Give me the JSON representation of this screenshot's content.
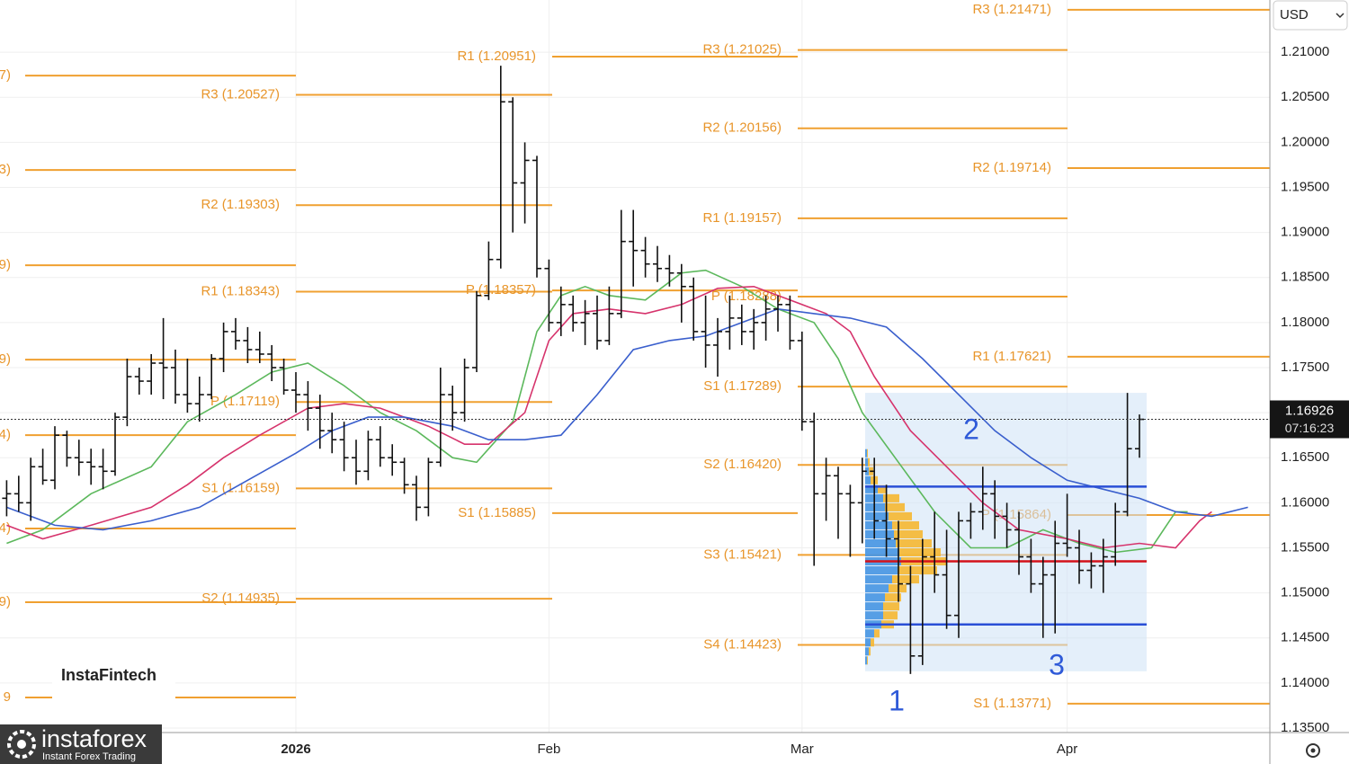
{
  "chart_data": {
    "type": "ohlc",
    "color": "#111111",
    "categories": [
      null,
      null,
      null,
      null,
      null,
      null,
      null,
      null,
      null,
      null,
      null,
      null,
      null,
      null,
      null,
      null,
      null,
      null,
      null,
      null,
      null,
      null,
      null,
      null,
      "2026",
      null,
      null,
      null,
      null,
      null,
      null,
      null,
      null,
      null,
      null,
      null,
      null,
      null,
      null,
      null,
      null,
      null,
      null,
      null,
      null,
      "Feb",
      null,
      null,
      null,
      null,
      null,
      null,
      null,
      null,
      null,
      null,
      null,
      null,
      null,
      null,
      null,
      null,
      null,
      null,
      null,
      null,
      "Mar",
      null,
      null,
      null,
      null,
      null,
      null,
      null,
      null,
      null,
      null,
      null,
      null,
      null,
      null,
      null,
      null,
      null,
      null,
      null,
      null,
      null,
      "Apr",
      null,
      null,
      null,
      null,
      null,
      null
    ],
    "open": [
      1.1605,
      1.161,
      1.16,
      1.164,
      1.1625,
      1.1675,
      1.165,
      1.1645,
      1.164,
      1.1635,
      1.1695,
      1.174,
      1.1735,
      1.1755,
      1.175,
      1.172,
      1.171,
      1.172,
      1.176,
      1.179,
      1.178,
      1.177,
      1.1765,
      1.175,
      1.1725,
      1.172,
      1.1705,
      1.168,
      1.167,
      1.165,
      1.1635,
      1.167,
      1.165,
      1.1645,
      1.162,
      1.1595,
      1.1645,
      1.172,
      1.17,
      1.175,
      1.183,
      1.187,
      1.2045,
      1.1955,
      1.198,
      1.186,
      1.18,
      1.182,
      1.18,
      1.181,
      1.178,
      1.181,
      1.189,
      1.188,
      1.1865,
      1.186,
      1.1855,
      1.184,
      1.179,
      1.1775,
      1.179,
      1.1805,
      1.179,
      1.18,
      1.1815,
      1.182,
      1.178,
      1.169,
      1.161,
      1.163,
      1.161,
      1.16,
      1.1635,
      1.158,
      1.156,
      1.151,
      1.143,
      1.154,
      1.152,
      1.1475,
      1.158,
      1.159,
      1.161,
      1.1585,
      1.157,
      1.154,
      1.151,
      1.152,
      1.1555,
      1.155,
      1.1525,
      1.153,
      1.154,
      1.159,
      1.166
    ],
    "high": [
      1.1625,
      1.163,
      1.165,
      1.166,
      1.1685,
      1.168,
      1.167,
      1.166,
      1.166,
      1.17,
      1.176,
      1.175,
      1.1765,
      1.1805,
      1.177,
      1.176,
      1.174,
      1.1765,
      1.18,
      1.1805,
      1.1795,
      1.179,
      1.1775,
      1.176,
      1.1745,
      1.1735,
      1.172,
      1.17,
      1.169,
      1.167,
      1.168,
      1.1685,
      1.1665,
      1.165,
      1.163,
      1.165,
      1.175,
      1.173,
      1.176,
      1.1835,
      1.189,
      1.2085,
      1.205,
      1.2,
      1.1985,
      1.187,
      1.184,
      1.183,
      1.1825,
      1.183,
      1.184,
      1.1925,
      1.1925,
      1.1895,
      1.1885,
      1.1875,
      1.1865,
      1.185,
      1.183,
      1.1805,
      1.183,
      1.182,
      1.1815,
      1.183,
      1.183,
      1.183,
      1.179,
      1.17,
      1.165,
      1.164,
      1.162,
      1.165,
      1.165,
      1.162,
      1.158,
      1.153,
      1.156,
      1.159,
      1.157,
      1.159,
      1.16,
      1.164,
      1.1625,
      1.16,
      1.159,
      1.156,
      1.154,
      1.158,
      1.161,
      1.157,
      1.1545,
      1.156,
      1.16,
      1.1722,
      1.1698
    ],
    "low": [
      1.1585,
      1.159,
      1.158,
      1.162,
      1.1615,
      1.164,
      1.163,
      1.162,
      1.1615,
      1.163,
      1.1685,
      1.172,
      1.172,
      1.1715,
      1.171,
      1.17,
      1.169,
      1.1715,
      1.1745,
      1.177,
      1.1755,
      1.1755,
      1.1735,
      1.172,
      1.17,
      1.168,
      1.166,
      1.1655,
      1.1635,
      1.162,
      1.1625,
      1.164,
      1.163,
      1.161,
      1.158,
      1.1585,
      1.164,
      1.168,
      1.169,
      1.1745,
      1.1825,
      1.186,
      1.19,
      1.191,
      1.185,
      1.179,
      1.1785,
      1.179,
      1.1775,
      1.177,
      1.1775,
      1.1805,
      1.184,
      1.185,
      1.1845,
      1.184,
      1.18,
      1.178,
      1.175,
      1.174,
      1.177,
      1.1775,
      1.177,
      1.178,
      1.179,
      1.177,
      1.168,
      1.153,
      1.158,
      1.156,
      1.154,
      1.1555,
      1.156,
      1.154,
      1.149,
      1.141,
      1.142,
      1.15,
      1.146,
      1.145,
      1.156,
      1.157,
      1.156,
      1.155,
      1.152,
      1.15,
      1.145,
      1.1455,
      1.154,
      1.151,
      1.1505,
      1.15,
      1.153,
      1.1585,
      1.165
    ],
    "close": [
      1.161,
      1.16,
      1.164,
      1.1625,
      1.1675,
      1.165,
      1.1645,
      1.164,
      1.1635,
      1.1695,
      1.174,
      1.1735,
      1.1755,
      1.175,
      1.172,
      1.171,
      1.172,
      1.176,
      1.179,
      1.178,
      1.177,
      1.1765,
      1.175,
      1.1725,
      1.172,
      1.1705,
      1.168,
      1.167,
      1.165,
      1.1635,
      1.167,
      1.165,
      1.1645,
      1.162,
      1.1595,
      1.1645,
      1.172,
      1.17,
      1.175,
      1.183,
      1.187,
      1.2045,
      1.1955,
      1.198,
      1.186,
      1.18,
      1.182,
      1.18,
      1.181,
      1.178,
      1.181,
      1.189,
      1.188,
      1.1865,
      1.186,
      1.1855,
      1.184,
      1.179,
      1.1775,
      1.179,
      1.1805,
      1.179,
      1.18,
      1.1815,
      1.182,
      1.178,
      1.169,
      1.161,
      1.163,
      1.161,
      1.16,
      1.1635,
      1.158,
      1.156,
      1.151,
      1.143,
      1.154,
      1.152,
      1.1475,
      1.158,
      1.159,
      1.161,
      1.1585,
      1.157,
      1.154,
      1.151,
      1.152,
      1.1555,
      1.155,
      1.1525,
      1.153,
      1.154,
      1.159,
      1.166,
      1.16926
    ],
    "ylim": [
      1.1345,
      1.2158
    ],
    "yticks": [
      {
        "value": 1.21,
        "label": "1.21000"
      },
      {
        "value": 1.205,
        "label": "1.20500"
      },
      {
        "value": 1.2,
        "label": "1.20000"
      },
      {
        "value": 1.195,
        "label": "1.19500"
      },
      {
        "value": 1.19,
        "label": "1.19000"
      },
      {
        "value": 1.185,
        "label": "1.18500"
      },
      {
        "value": 1.18,
        "label": "1.18000"
      },
      {
        "value": 1.175,
        "label": "1.17500"
      },
      {
        "value": 1.17,
        "label": "1.17000"
      },
      {
        "value": 1.165,
        "label": "1.16500"
      },
      {
        "value": 1.16,
        "label": "1.16000"
      },
      {
        "value": 1.155,
        "label": "1.15500"
      },
      {
        "value": 1.15,
        "label": "1.15000"
      },
      {
        "value": 1.145,
        "label": "1.14500"
      },
      {
        "value": 1.14,
        "label": "1.14000"
      },
      {
        "value": 1.135,
        "label": "1.13500"
      }
    ],
    "grid": true,
    "moving_averages": [
      {
        "color": "#5cb85c",
        "x": [
          0,
          3,
          7,
          12,
          15,
          19,
          22,
          25,
          28,
          31,
          34,
          37,
          39,
          42,
          44,
          46,
          48,
          50,
          53,
          56,
          58,
          61,
          64,
          67,
          69,
          71,
          74,
          77,
          80,
          83,
          86,
          89,
          92,
          95,
          97,
          98
        ],
        "values": [
          1.1555,
          1.157,
          1.161,
          1.164,
          1.169,
          1.172,
          1.1745,
          1.1755,
          1.173,
          1.17,
          1.168,
          1.165,
          1.1645,
          1.169,
          1.179,
          1.183,
          1.184,
          1.183,
          1.1825,
          1.1855,
          1.1858,
          1.184,
          1.1815,
          1.18,
          1.176,
          1.17,
          1.1645,
          1.159,
          1.155,
          1.155,
          1.157,
          1.1555,
          1.1545,
          1.155,
          1.159,
          1.159
        ]
      },
      {
        "color": "#d6336c",
        "x": [
          0,
          3,
          7,
          12,
          15,
          18,
          21,
          25,
          28,
          31,
          35,
          38,
          40,
          43,
          45,
          47,
          50,
          53,
          56,
          59,
          62,
          65,
          68,
          70,
          72,
          75,
          78,
          81,
          84,
          88,
          91,
          94,
          97,
          99,
          100
        ],
        "values": [
          1.1575,
          1.156,
          1.1575,
          1.1595,
          1.162,
          1.165,
          1.1675,
          1.1705,
          1.171,
          1.1705,
          1.1685,
          1.1665,
          1.1665,
          1.17,
          1.178,
          1.181,
          1.1815,
          1.181,
          1.182,
          1.1838,
          1.184,
          1.1825,
          1.181,
          1.179,
          1.174,
          1.168,
          1.164,
          1.16,
          1.157,
          1.156,
          1.155,
          1.1555,
          1.155,
          1.158,
          1.159
        ]
      },
      {
        "color": "#3a5fcd",
        "x": [
          0,
          4,
          8,
          12,
          16,
          20,
          24,
          27,
          30,
          33,
          37,
          40,
          43,
          46,
          49,
          52,
          55,
          58,
          61,
          64,
          67,
          70,
          73,
          76,
          79,
          82,
          85,
          88,
          91,
          94,
          97,
          100,
          103
        ],
        "values": [
          1.1595,
          1.1575,
          1.157,
          1.158,
          1.1595,
          1.1625,
          1.1655,
          1.168,
          1.1695,
          1.1695,
          1.1685,
          1.167,
          1.167,
          1.1675,
          1.172,
          1.177,
          1.178,
          1.1785,
          1.18,
          1.1815,
          1.181,
          1.1805,
          1.1795,
          1.176,
          1.172,
          1.168,
          1.165,
          1.1625,
          1.1615,
          1.1605,
          1.159,
          1.1585,
          1.1595
        ]
      }
    ],
    "pivot_color": "#f0a030",
    "pivot_periods": [
      {
        "levels": [
          {
            "label": "7)",
            "value": 1.20741
          },
          {
            "label": "3)",
            "value": 1.19693
          },
          {
            "label": "9)",
            "value": 1.18636
          },
          {
            "label": "9)",
            "value": 1.17589
          },
          {
            "label": "4)",
            "value": 1.16751
          },
          {
            "label": "4)",
            "value": 1.15714
          },
          {
            "label": "9)",
            "value": 1.14896
          },
          {
            "label": "9",
            "value": 1.13839
          }
        ]
      },
      {
        "levels": [
          {
            "label": "R3 (1.20527)",
            "value": 1.20527
          },
          {
            "label": "R2 (1.19303)",
            "value": 1.19303
          },
          {
            "label": "R1 (1.18343)",
            "value": 1.18343
          },
          {
            "label": "P (1.17119)",
            "value": 1.17119
          },
          {
            "label": "S1 (1.16159)",
            "value": 1.16159
          },
          {
            "label": "S2 (1.14935)",
            "value": 1.14935
          }
        ]
      },
      {
        "levels": [
          {
            "label": "R1 (1.20951)",
            "value": 1.20951
          },
          {
            "label": "P (1.18357)",
            "value": 1.18357
          },
          {
            "label": "S1 (1.15885)",
            "value": 1.15885
          }
        ]
      },
      {
        "levels": [
          {
            "label": "R3 (1.21025)",
            "value": 1.21025
          },
          {
            "label": "R2 (1.20156)",
            "value": 1.20156
          },
          {
            "label": "R1 (1.19157)",
            "value": 1.19157
          },
          {
            "label": "P (1.18288)",
            "value": 1.18288
          },
          {
            "label": "S1 (1.17289)",
            "value": 1.17289
          },
          {
            "label": "S2 (1.16420)",
            "value": 1.1642
          },
          {
            "label": "S3 (1.15421)",
            "value": 1.15421
          },
          {
            "label": "S4 (1.14423)",
            "value": 1.14423
          }
        ]
      },
      {
        "levels": [
          {
            "label": "R3 (1.21471)",
            "value": 1.21471
          },
          {
            "label": "R2 (1.19714)",
            "value": 1.19714
          },
          {
            "label": "R1 (1.17621)",
            "value": 1.17621
          },
          {
            "label": "P (1.15864)",
            "value": 1.15864
          },
          {
            "label": "S1 (1.13771)",
            "value": 1.13771
          }
        ]
      }
    ],
    "volume_profile": {
      "range": [
        1.1413,
        1.1722
      ],
      "prices": [
        1.1655,
        1.1645,
        1.1635,
        1.1625,
        1.1615,
        1.1605,
        1.1595,
        1.1585,
        1.1575,
        1.1565,
        1.1555,
        1.1545,
        1.1535,
        1.1525,
        1.1515,
        1.1505,
        1.1495,
        1.1485,
        1.1475,
        1.1465,
        1.1455,
        1.1445,
        1.1435,
        1.1425
      ],
      "up": [
        2,
        3,
        4,
        6,
        14,
        20,
        22,
        26,
        30,
        32,
        34,
        38,
        40,
        36,
        30,
        26,
        22,
        20,
        20,
        18,
        10,
        6,
        4,
        2
      ],
      "down": [
        1,
        2,
        5,
        8,
        10,
        18,
        22,
        26,
        30,
        32,
        40,
        46,
        50,
        44,
        30,
        20,
        18,
        18,
        16,
        14,
        6,
        4,
        2,
        1
      ],
      "up_color": "#3d8fe0",
      "down_color": "#f5b731",
      "value_area_high": 1.1618,
      "poc": 1.1535,
      "value_area_low": 1.1465
    },
    "annotations": [
      "1",
      "2",
      "3"
    ],
    "currency": "USD",
    "countdown": "07:16:23"
  },
  "branding": {
    "watermark": "InstaFintech",
    "logo": "instaforex",
    "logo_tagline": "Instant Forex Trading"
  }
}
